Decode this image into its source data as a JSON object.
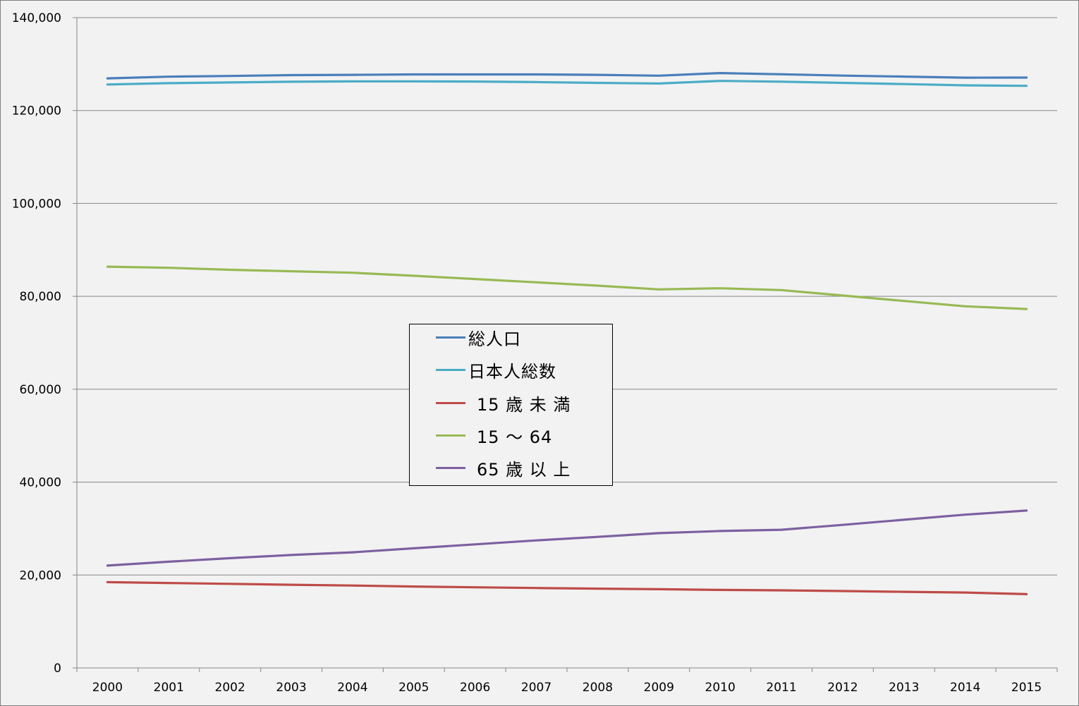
{
  "chart_data": {
    "type": "line",
    "x": [
      "2000",
      "2001",
      "2002",
      "2003",
      "2004",
      "2005",
      "2006",
      "2007",
      "2008",
      "2009",
      "2010",
      "2011",
      "2012",
      "2013",
      "2014",
      "2015"
    ],
    "ylim": [
      0,
      140000
    ],
    "yticks": [
      0,
      20000,
      40000,
      60000,
      80000,
      100000,
      120000,
      140000
    ],
    "ytick_labels": [
      "0",
      "20,000",
      "40,000",
      "60,000",
      "80,000",
      "100,000",
      "120,000",
      "140,000"
    ],
    "grid": "horizontal",
    "legend_position": "center",
    "series": [
      {
        "name": "総人口",
        "color": "#4a7ebb",
        "values": [
          126930,
          127290,
          127440,
          127620,
          127690,
          127770,
          127770,
          127770,
          127690,
          127510,
          128060,
          127800,
          127520,
          127300,
          127080,
          127090
        ]
      },
      {
        "name": "日本人総数",
        "color": "#4bacc6",
        "values": [
          125610,
          125900,
          126050,
          126200,
          126270,
          126270,
          126240,
          126120,
          125950,
          125820,
          126380,
          126210,
          125960,
          125700,
          125430,
          125320
        ]
      },
      {
        "name": "15 歳 未 満",
        "color": "#be4b48",
        "values": [
          18470,
          18280,
          18100,
          17900,
          17730,
          17520,
          17350,
          17200,
          17060,
          16940,
          16800,
          16710,
          16550,
          16390,
          16230,
          15890
        ]
      },
      {
        "name": "15 ～ 64",
        "color": "#98b954",
        "values": [
          86380,
          86140,
          85710,
          85400,
          85080,
          84420,
          83730,
          83010,
          82300,
          81490,
          81740,
          81340,
          80170,
          79010,
          77850,
          77280
        ]
      },
      {
        "name": "65 歳 以 上",
        "color": "#7d60a0",
        "values": [
          22040,
          22870,
          23630,
          24310,
          24880,
          25760,
          26600,
          27460,
          28220,
          29010,
          29480,
          29750,
          30790,
          31900,
          33000,
          33870
        ]
      }
    ]
  }
}
